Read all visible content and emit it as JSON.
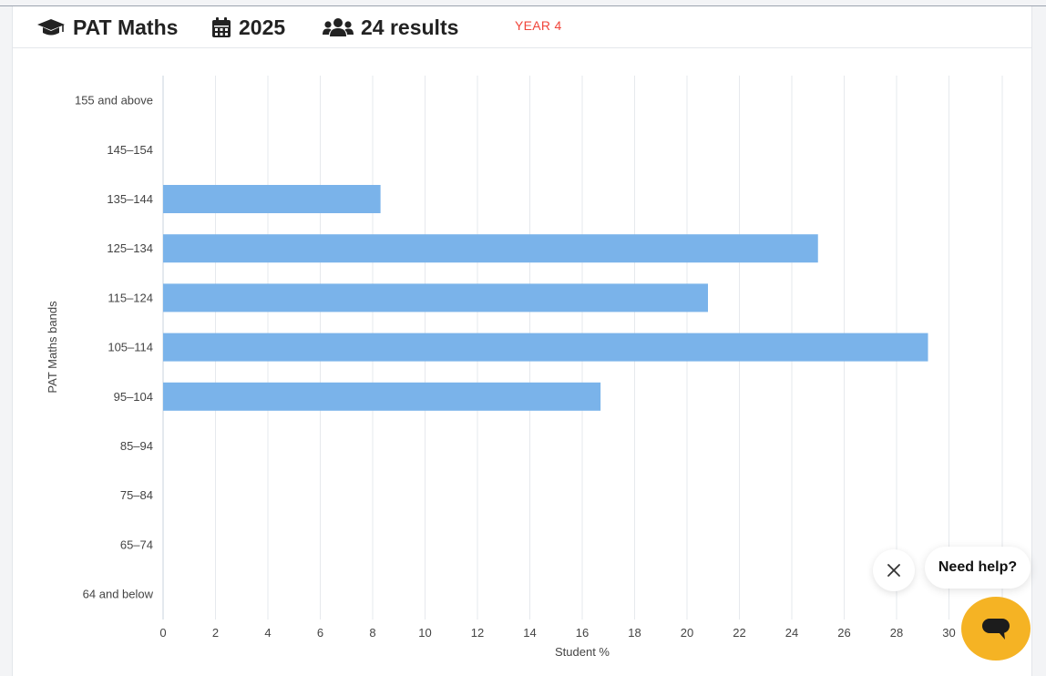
{
  "header": {
    "title": "PAT Maths",
    "title_icon": "graduation-cap-icon",
    "year_value": "2025",
    "year_icon": "calendar-icon",
    "results": "24 results",
    "results_icon": "users-icon",
    "level": "YEAR 4",
    "level_color": "#f0453a"
  },
  "chart_data": {
    "type": "bar",
    "orientation": "horizontal",
    "ylabel": "PAT Maths bands",
    "xlabel": "Student %",
    "categories": [
      "155 and above",
      "145–154",
      "135–144",
      "125–134",
      "115–124",
      "105–114",
      "95–104",
      "85–94",
      "75–84",
      "65–74",
      "64 and below"
    ],
    "values": [
      0,
      0,
      8.3,
      25.0,
      20.8,
      29.2,
      16.7,
      0,
      0,
      0,
      0
    ],
    "xlim": [
      0,
      30
    ],
    "xticks": [
      0,
      2,
      4,
      6,
      8,
      10,
      12,
      14,
      16,
      18,
      20,
      22,
      24,
      26,
      28,
      30
    ],
    "grid": true,
    "bar_color": "#7ab3ea"
  },
  "help_widget": {
    "label": "Need help?",
    "close_icon": "close-icon",
    "launcher_icon": "chat-icon",
    "launcher_color": "#f5b324"
  }
}
